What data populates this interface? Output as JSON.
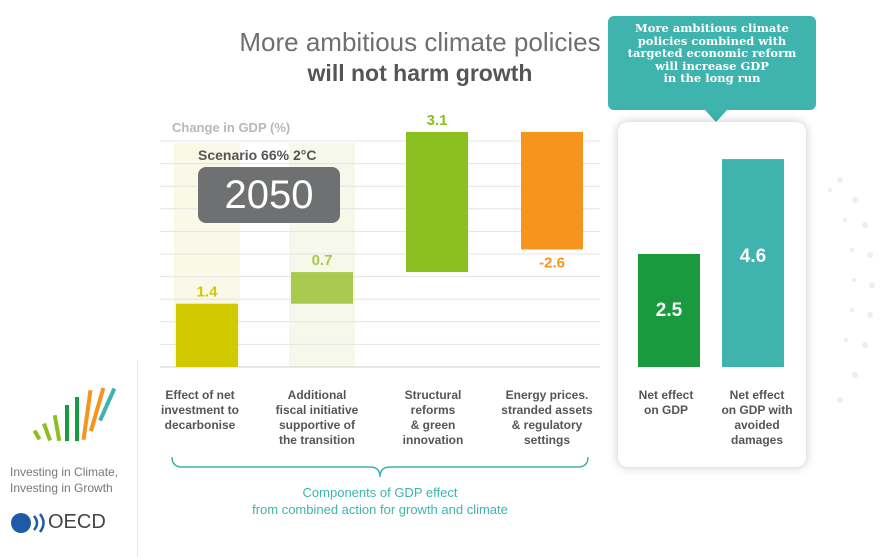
{
  "title": {
    "line1": "More ambitious climate policies",
    "line2": "will not harm growth"
  },
  "callout": {
    "lines": [
      "More ambitious climate",
      "policies combined with",
      "targeted economic reform",
      "will increase GDP",
      "in the long run"
    ]
  },
  "scenario": {
    "label": "Scenario 66% 2°C",
    "year": "2050"
  },
  "footer": {
    "line1": "Components of GDP effect",
    "line2": "from combined action for growth and climate"
  },
  "branding": {
    "tagline1": "Investing in Climate,",
    "tagline2": "Investing in Growth",
    "org": "OECD"
  },
  "colors": {
    "teal": "#3fb3ad",
    "yellow": "#d3c900",
    "lime": "#a9c94f",
    "green": "#8cc021",
    "orange": "#f7941d",
    "dark_green": "#1a9a3e"
  },
  "chart_data": {
    "type": "bar",
    "ylabel": "Change in GDP (%)",
    "categories": [
      "Effect of net investment to decarbonise",
      "Additional fiscal initiative supportive of the transition",
      "Structural reforms & green innovation",
      "Energy prices. stranded assets & regulatory settings",
      "Net effect on GDP",
      "Net effect on GDP with avoided damages"
    ],
    "category_lines": [
      [
        "Effect of net",
        "investment to",
        "decarbonise"
      ],
      [
        "Additional",
        "fiscal initiative",
        "supportive of",
        "the transition"
      ],
      [
        "Structural",
        "reforms",
        "& green",
        "innovation"
      ],
      [
        "Energy prices.",
        "stranded assets",
        "& regulatory",
        "settings"
      ],
      [
        "Net effect",
        "on GDP"
      ],
      [
        "Net effect",
        "on GDP with",
        "avoided",
        "damages"
      ]
    ],
    "values": [
      1.4,
      0.7,
      3.1,
      -2.6,
      2.5,
      4.6
    ],
    "value_labels": [
      "1.4",
      "0.7",
      "3.1",
      "-2.6",
      "2.5",
      "4.6"
    ],
    "kind": [
      "step",
      "step",
      "step",
      "step",
      "total",
      "total"
    ],
    "colors": [
      "#d3c900",
      "#a9c94f",
      "#8cc021",
      "#f7941d",
      "#1a9a3e",
      "#3fb3ad"
    ],
    "grid": true
  }
}
